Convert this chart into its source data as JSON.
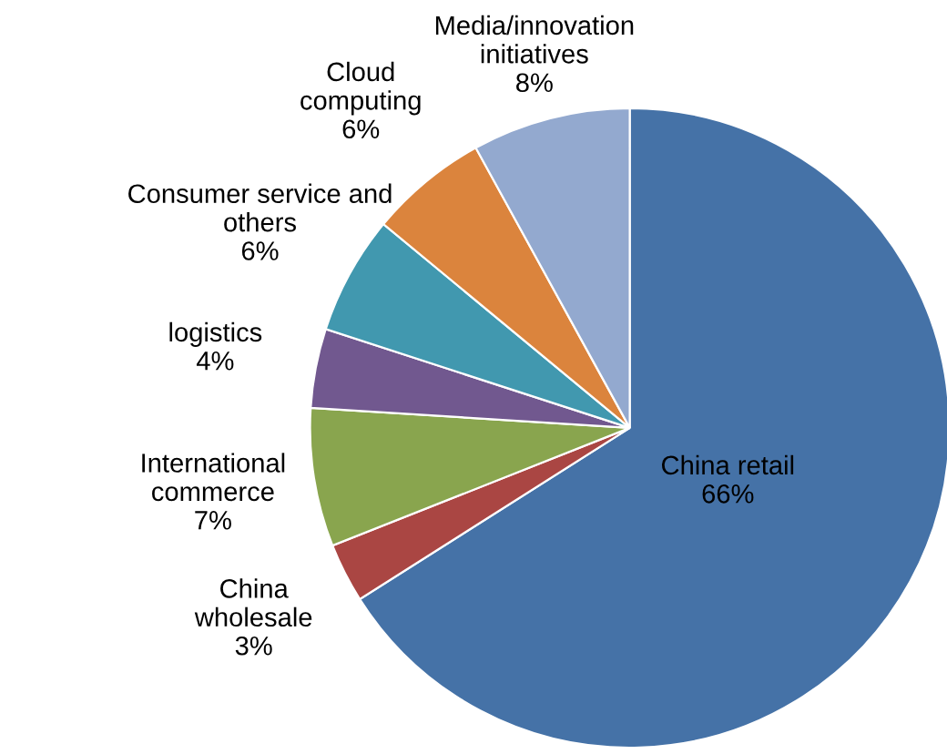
{
  "chart_data": {
    "type": "pie",
    "categories": [
      "China retail",
      "China\nwholesale",
      "International\ncommerce",
      "logistics",
      "Consumer service and\nothers",
      "Cloud\ncomputing",
      "Media/innovation\ninitiatives"
    ],
    "values": [
      66,
      3,
      7,
      4,
      6,
      6,
      8
    ],
    "colors": [
      "#4572a7",
      "#aa4643",
      "#89a54e",
      "#71588f",
      "#4198af",
      "#db843d",
      "#93a9cf"
    ],
    "value_labels": [
      "66%",
      "3%",
      "7%",
      "4%",
      "6%",
      "6%",
      "8%"
    ],
    "legend": false
  }
}
